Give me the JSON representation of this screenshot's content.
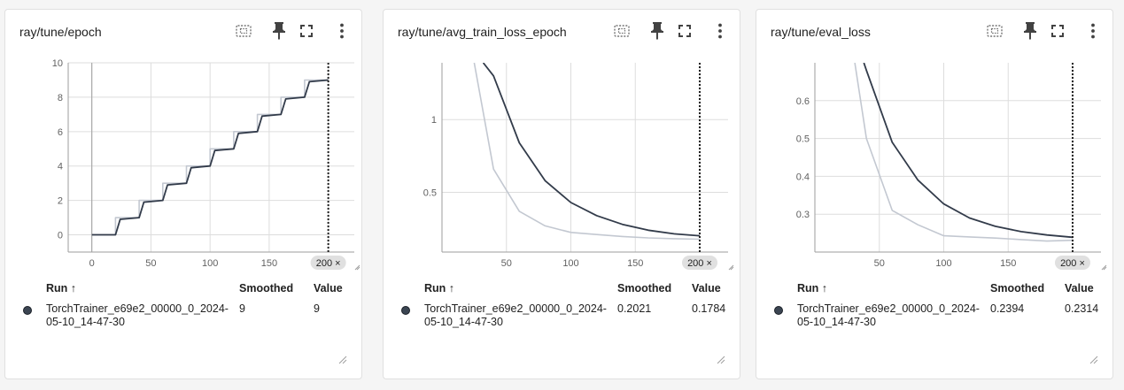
{
  "colors": {
    "smoothed_line": "#323b4a",
    "raw_line": "#c3c8d1",
    "grid": "#dddddd",
    "run_dot": "#3b4552"
  },
  "toolbar_icons": [
    "fit-domain-icon",
    "pin-icon",
    "fullscreen-icon",
    "more-vert-icon"
  ],
  "table_headers": {
    "run": "Run ↑",
    "smoothed": "Smoothed",
    "value": "Value"
  },
  "cards": [
    {
      "title": "ray/tune/epoch",
      "step_badge": "200 ×",
      "run_name": "TorchTrainer_e69e2_00000_0_2024-05-10_14-47-30",
      "smoothed": "9",
      "value": "9",
      "chart_data": {
        "type": "line",
        "xlabel": "",
        "ylabel": "",
        "xlim": [
          -20,
          222
        ],
        "ylim": [
          -1,
          10
        ],
        "x_ticks": [
          0,
          50,
          100,
          150,
          200
        ],
        "y_ticks": [
          0,
          2,
          4,
          6,
          8,
          10
        ],
        "x_tick_labels": [
          "0",
          "50",
          "100",
          "150",
          ""
        ],
        "y_tick_labels": [
          "0",
          "2",
          "4",
          "6",
          "8",
          "10"
        ],
        "grid": true,
        "series": [
          {
            "role": "raw",
            "x": [
              0,
              20,
              20,
              40,
              40,
              60,
              60,
              80,
              80,
              100,
              100,
              120,
              120,
              140,
              140,
              160,
              160,
              180,
              180,
              200
            ],
            "y": [
              0,
              0,
              1,
              1,
              2,
              2,
              3,
              3,
              4,
              4,
              5,
              5,
              6,
              6,
              7,
              7,
              8,
              8,
              9,
              9
            ]
          },
          {
            "role": "smoothed",
            "x": [
              0,
              20,
              24,
              40,
              44,
              60,
              64,
              80,
              84,
              100,
              104,
              120,
              124,
              140,
              144,
              160,
              164,
              180,
              184,
              200
            ],
            "y": [
              0,
              0,
              0.9,
              1,
              1.9,
              2,
              2.9,
              3,
              3.9,
              4,
              4.9,
              5,
              5.9,
              6,
              6.9,
              7,
              7.9,
              8,
              8.9,
              9
            ]
          }
        ],
        "step_marker": 200
      }
    },
    {
      "title": "ray/tune/avg_train_loss_epoch",
      "step_badge": "200 ×",
      "run_name": "TorchTrainer_e69e2_00000_0_2024-05-10_14-47-30",
      "smoothed": "0.2021",
      "value": "0.1784",
      "chart_data": {
        "type": "line",
        "xlabel": "",
        "ylabel": "",
        "xlim": [
          0,
          222
        ],
        "ylim": [
          0.09,
          1.39
        ],
        "x_ticks": [
          50,
          100,
          150,
          200
        ],
        "y_ticks": [
          0.5,
          1
        ],
        "x_tick_labels": [
          "50",
          "100",
          "150",
          ""
        ],
        "y_tick_labels": [
          "0.5",
          "1"
        ],
        "grid": true,
        "series": [
          {
            "role": "raw",
            "x": [
              25,
              40,
              60,
              80,
              100,
              120,
              140,
              160,
              180,
              200
            ],
            "y": [
              1.39,
              0.66,
              0.37,
              0.27,
              0.225,
              0.21,
              0.197,
              0.187,
              0.182,
              0.178
            ]
          },
          {
            "role": "smoothed",
            "x": [
              32,
              40,
              60,
              80,
              100,
              120,
              140,
              160,
              180,
              200
            ],
            "y": [
              1.39,
              1.3,
              0.84,
              0.58,
              0.43,
              0.34,
              0.28,
              0.24,
              0.215,
              0.202
            ]
          }
        ],
        "step_marker": 200
      }
    },
    {
      "title": "ray/tune/eval_loss",
      "step_badge": "200 ×",
      "run_name": "TorchTrainer_e69e2_00000_0_2024-05-10_14-47-30",
      "smoothed": "0.2394",
      "value": "0.2314",
      "chart_data": {
        "type": "line",
        "xlabel": "",
        "ylabel": "",
        "xlim": [
          0,
          222
        ],
        "ylim": [
          0.2,
          0.7
        ],
        "x_ticks": [
          50,
          100,
          150,
          200
        ],
        "y_ticks": [
          0.3,
          0.4,
          0.5,
          0.6
        ],
        "x_tick_labels": [
          "50",
          "100",
          "150",
          ""
        ],
        "y_tick_labels": [
          "0.3",
          "0.4",
          "0.5",
          "0.6"
        ],
        "grid": true,
        "series": [
          {
            "role": "raw",
            "x": [
              31,
              40,
              60,
              80,
              100,
              120,
              140,
              160,
              180,
              200
            ],
            "y": [
              0.7,
              0.5,
              0.31,
              0.272,
              0.243,
              0.24,
              0.237,
              0.233,
              0.229,
              0.231
            ]
          },
          {
            "role": "smoothed",
            "x": [
              38,
              40,
              60,
              80,
              100,
              120,
              140,
              160,
              180,
              200
            ],
            "y": [
              0.7,
              0.68,
              0.49,
              0.39,
              0.327,
              0.29,
              0.268,
              0.254,
              0.245,
              0.239
            ]
          }
        ],
        "step_marker": 200
      }
    }
  ]
}
